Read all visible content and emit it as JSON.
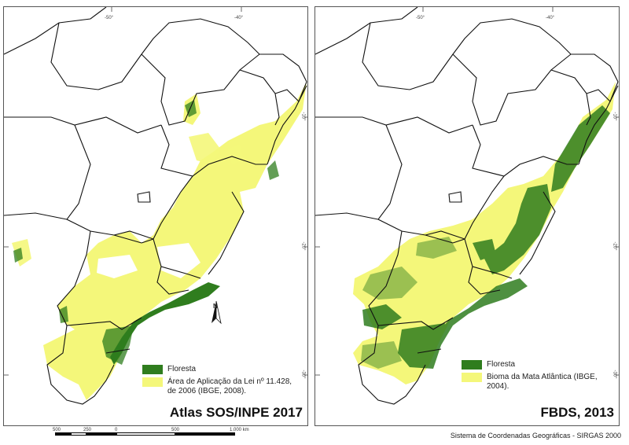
{
  "left_panel": {
    "title": "Atlas SOS/INPE 2017",
    "ticks_top": [
      "-50°",
      "-40°"
    ],
    "ticks_right": [
      "-10°",
      "-20°",
      "-30°"
    ],
    "legend": [
      {
        "label": "Floresta",
        "color": "#2f7d1e"
      },
      {
        "label": "Área de Aplicação da Lei nº 11.428, de 2006 (IBGE, 2008).",
        "color": "#f4f77a"
      }
    ],
    "north_label": "N"
  },
  "right_panel": {
    "title": "FBDS, 2013",
    "ticks_top": [
      "-50°",
      "-40°"
    ],
    "ticks_right": [
      "-10°",
      "-20°",
      "-30°"
    ],
    "legend": [
      {
        "label": "Floresta",
        "color": "#2f7d1e"
      },
      {
        "label": "Bioma da Mata Atlântica (IBGE, 2004).",
        "color": "#f4f77a"
      }
    ]
  },
  "scale_bar": {
    "labels": [
      "500",
      "250",
      "0",
      "500",
      "1.000 km"
    ]
  },
  "crs": "Sistema de Coordenadas Geográficas - SIRGAS 2000",
  "colors": {
    "forest": "#2f7d1e",
    "area": "#f4f77a",
    "border": "#111111"
  }
}
